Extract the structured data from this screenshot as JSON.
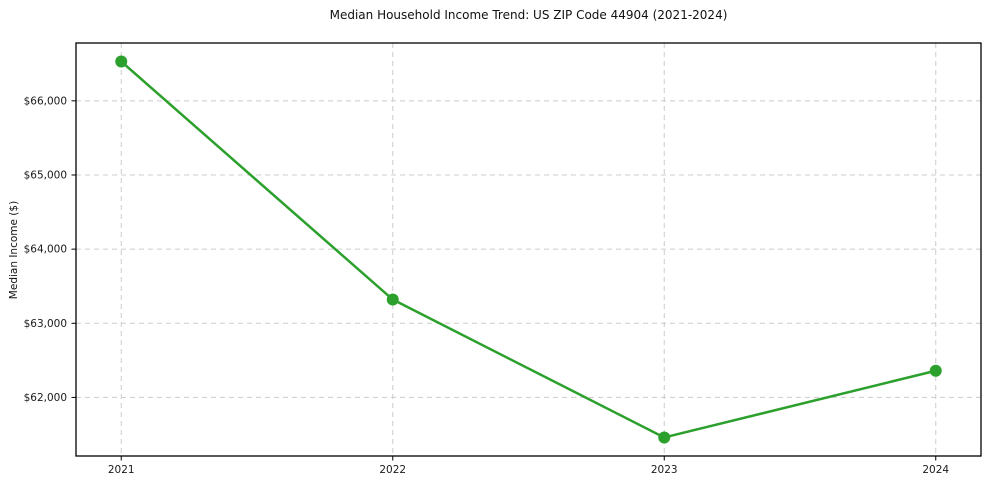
{
  "chart_data": {
    "type": "line",
    "title": "Median Household Income Trend: US ZIP Code 44904 (2021-2024)",
    "xlabel": "",
    "ylabel": "Median Income ($)",
    "x": [
      2021,
      2022,
      2023,
      2024
    ],
    "x_tick_labels": [
      "2021",
      "2022",
      "2023",
      "2024"
    ],
    "series": [
      {
        "name": "Median Household Income",
        "values": [
          66530,
          63320,
          61460,
          62360
        ]
      }
    ],
    "y_ticks": [
      62000,
      63000,
      64000,
      65000,
      66000
    ],
    "y_tick_labels": [
      "$62,000",
      "$63,000",
      "$64,000",
      "$65,000",
      "$66,000"
    ],
    "ylim": [
      61210,
      66780
    ],
    "grid": "major-dashed",
    "legend": "none",
    "colors": {
      "line": "#2ca02c",
      "marker": "#2ca02c",
      "grid": "#cccccc",
      "frame": "#000000",
      "text": "#1a1a1a",
      "background": "#ffffff"
    }
  }
}
